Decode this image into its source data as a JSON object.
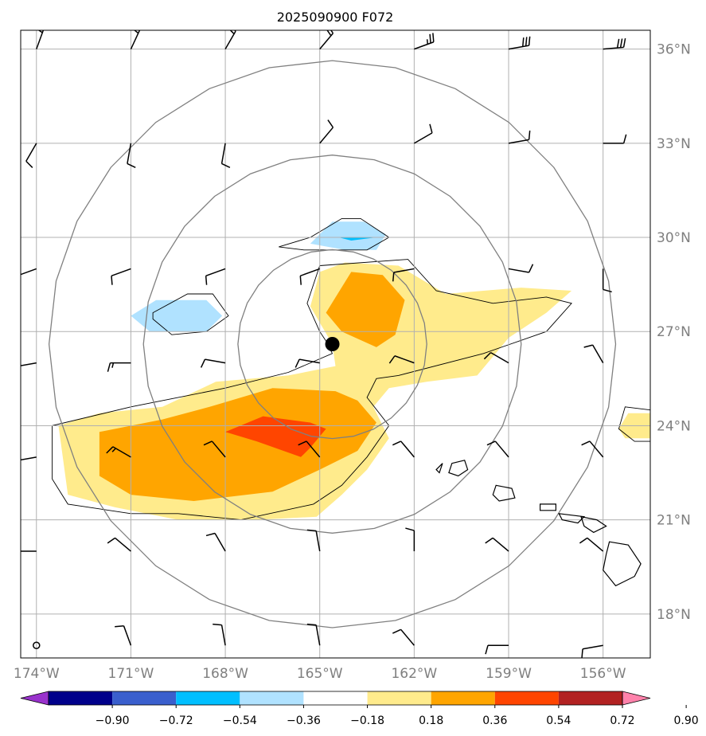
{
  "chart_data": {
    "type": "map-contour",
    "title": "2025090900 F072",
    "lon_labels": [
      "174°W",
      "171°W",
      "168°W",
      "165°W",
      "162°W",
      "159°W",
      "156°W"
    ],
    "lat_labels": [
      "36°N",
      "33°N",
      "30°N",
      "27°N",
      "24°N",
      "21°N",
      "18°N"
    ],
    "lon_range": [
      -174.5,
      -154.5
    ],
    "lat_range": [
      16.6,
      36.6
    ],
    "center": {
      "lon": -164.6,
      "lat": 26.6
    },
    "range_rings_deg": [
      3,
      6,
      9
    ],
    "colorbar": {
      "ticks": [
        "−0.90",
        "−0.72",
        "−0.54",
        "−0.36",
        "−0.18",
        "0.18",
        "0.36",
        "0.54",
        "0.72",
        "0.90"
      ],
      "levels": [
        -0.9,
        -0.72,
        -0.54,
        -0.36,
        -0.18,
        0.18,
        0.36,
        0.54,
        0.72,
        0.9
      ],
      "colors": [
        "#9932cc",
        "#00008b",
        "#3a5fcd",
        "#00bfff",
        "#b0e2ff",
        "#ffffff",
        "#ffeb8c",
        "#ffa500",
        "#ff4500",
        "#b22222",
        "#ff82ab"
      ]
    },
    "contours": [
      {
        "level": "0.18-0.36",
        "color": "#ffeb8c",
        "points": [
          [
            -164.2,
            29.2
          ],
          [
            -162.5,
            29.1
          ],
          [
            -161.0,
            28.2
          ],
          [
            -158.6,
            28.4
          ],
          [
            -157.0,
            28.3
          ],
          [
            -157.8,
            27.6
          ],
          [
            -159.0,
            26.8
          ],
          [
            -160.0,
            25.6
          ],
          [
            -161.6,
            25.4
          ],
          [
            -162.8,
            25.2
          ],
          [
            -163.3,
            24.6
          ],
          [
            -162.8,
            23.6
          ],
          [
            -163.5,
            22.6
          ],
          [
            -164.3,
            21.8
          ],
          [
            -165.1,
            21.1
          ],
          [
            -167.0,
            21.0
          ],
          [
            -169.5,
            21.0
          ],
          [
            -171.5,
            21.4
          ],
          [
            -173.0,
            21.8
          ],
          [
            -173.3,
            24.0
          ],
          [
            -172.0,
            24.4
          ],
          [
            -170.0,
            24.6
          ],
          [
            -168.3,
            25.4
          ],
          [
            -166.0,
            25.6
          ],
          [
            -164.5,
            25.9
          ],
          [
            -164.6,
            26.6
          ],
          [
            -165.3,
            27.8
          ],
          [
            -165.0,
            28.9
          ]
        ]
      },
      {
        "level": "0.36-0.54",
        "color": "#ffa500",
        "points": [
          [
            -164.0,
            28.9
          ],
          [
            -163.0,
            28.8
          ],
          [
            -162.3,
            28.0
          ],
          [
            -162.6,
            26.9
          ],
          [
            -163.2,
            26.5
          ],
          [
            -164.3,
            27.0
          ],
          [
            -164.8,
            27.6
          ]
        ]
      },
      {
        "level": "0.36-0.54",
        "color": "#ffa500",
        "points": [
          [
            -166.5,
            25.2
          ],
          [
            -164.5,
            25.1
          ],
          [
            -163.8,
            24.8
          ],
          [
            -163.2,
            24.1
          ],
          [
            -163.8,
            23.2
          ],
          [
            -165.0,
            22.6
          ],
          [
            -166.5,
            21.9
          ],
          [
            -169.0,
            21.6
          ],
          [
            -171.0,
            21.8
          ],
          [
            -172.0,
            22.4
          ],
          [
            -172.0,
            23.8
          ],
          [
            -170.0,
            24.2
          ],
          [
            -168.5,
            24.6
          ]
        ]
      },
      {
        "level": "0.54-0.72",
        "color": "#ff4500",
        "points": [
          [
            -166.8,
            24.3
          ],
          [
            -165.3,
            24.1
          ],
          [
            -164.8,
            23.9
          ],
          [
            -165.3,
            23.3
          ],
          [
            -165.6,
            23.0
          ],
          [
            -167.0,
            23.5
          ],
          [
            -168.0,
            23.8
          ]
        ]
      },
      {
        "level": "-0.36--0.18",
        "color": "#b0e2ff",
        "points": [
          [
            -164.6,
            30.5
          ],
          [
            -163.6,
            30.5
          ],
          [
            -162.9,
            30.1
          ],
          [
            -163.2,
            29.6
          ],
          [
            -164.2,
            29.6
          ],
          [
            -165.3,
            29.8
          ]
        ]
      },
      {
        "level": "-0.36--0.18",
        "color": "#b0e2ff",
        "points": [
          [
            -170.2,
            28.0
          ],
          [
            -168.6,
            28.0
          ],
          [
            -168.1,
            27.5
          ],
          [
            -168.6,
            27.0
          ],
          [
            -170.4,
            27.0
          ],
          [
            -171.0,
            27.5
          ]
        ]
      },
      {
        "level": "-0.54--0.36",
        "color": "#00bfff",
        "points": [
          [
            -164.4,
            30.0
          ],
          [
            -163.2,
            30.0
          ],
          [
            -164.0,
            29.9
          ]
        ]
      },
      {
        "level": "0.18-0.36",
        "color": "#ffeb8c",
        "points": [
          [
            -155.2,
            24.4
          ],
          [
            -154.5,
            24.4
          ],
          [
            -154.5,
            23.6
          ],
          [
            -155.3,
            23.6
          ],
          [
            -155.5,
            23.9
          ]
        ]
      }
    ],
    "outline_contours": [
      {
        "points": [
          [
            -165.0,
            29.1
          ],
          [
            -162.2,
            29.3
          ],
          [
            -161.3,
            28.3
          ],
          [
            -159.5,
            27.9
          ],
          [
            -157.8,
            28.1
          ],
          [
            -157.0,
            27.9
          ],
          [
            -157.8,
            27.0
          ],
          [
            -159.8,
            26.3
          ],
          [
            -162.5,
            25.6
          ],
          [
            -163.2,
            25.5
          ],
          [
            -163.5,
            24.9
          ],
          [
            -162.8,
            24.0
          ],
          [
            -163.5,
            23.0
          ],
          [
            -164.3,
            22.1
          ],
          [
            -165.2,
            21.5
          ],
          [
            -167.5,
            21.0
          ],
          [
            -169.5,
            21.2
          ],
          [
            -171.0,
            21.2
          ],
          [
            -173.0,
            21.5
          ],
          [
            -173.5,
            22.3
          ],
          [
            -173.5,
            24.0
          ],
          [
            -171.0,
            24.6
          ],
          [
            -168.0,
            25.2
          ],
          [
            -166.0,
            25.7
          ],
          [
            -164.6,
            26.3
          ],
          [
            -164.8,
            26.7
          ],
          [
            -165.0,
            27.0
          ],
          [
            -165.4,
            27.9
          ]
        ]
      },
      {
        "points": [
          [
            -165.3,
            30.0
          ],
          [
            -164.3,
            30.6
          ],
          [
            -163.7,
            30.6
          ],
          [
            -162.8,
            30.0
          ],
          [
            -163.5,
            29.6
          ],
          [
            -165.5,
            29.6
          ],
          [
            -166.3,
            29.7
          ]
        ]
      },
      {
        "points": [
          [
            -170.3,
            27.6
          ],
          [
            -169.2,
            28.2
          ],
          [
            -168.4,
            28.2
          ],
          [
            -167.9,
            27.5
          ],
          [
            -168.6,
            27.0
          ],
          [
            -169.7,
            26.9
          ],
          [
            -170.3,
            27.4
          ]
        ]
      },
      {
        "points": [
          [
            -155.3,
            24.6
          ],
          [
            -154.5,
            24.5
          ],
          [
            -154.5,
            23.5
          ],
          [
            -155.0,
            23.5
          ],
          [
            -155.5,
            23.9
          ]
        ]
      }
    ],
    "islands": [
      {
        "name": "Nihoa",
        "points": [
          [
            -160.8,
            22.8
          ],
          [
            -160.4,
            22.9
          ],
          [
            -160.3,
            22.6
          ],
          [
            -160.6,
            22.4
          ],
          [
            -160.9,
            22.5
          ]
        ]
      },
      {
        "name": "Niihau",
        "points": [
          [
            -161.3,
            22.6
          ],
          [
            -161.1,
            22.8
          ],
          [
            -161.2,
            22.5
          ]
        ]
      },
      {
        "name": "Kauai",
        "points": [
          [
            -159.4,
            22.1
          ],
          [
            -158.9,
            22.0
          ],
          [
            -158.8,
            21.7
          ],
          [
            -159.3,
            21.6
          ],
          [
            -159.5,
            21.8
          ]
        ]
      },
      {
        "name": "Oahu",
        "points": [
          [
            -158.0,
            21.5
          ],
          [
            -157.5,
            21.5
          ],
          [
            -157.5,
            21.3
          ],
          [
            -158.0,
            21.3
          ]
        ]
      },
      {
        "name": "Molokai",
        "points": [
          [
            -157.4,
            21.2
          ],
          [
            -156.6,
            21.1
          ],
          [
            -156.8,
            20.9
          ],
          [
            -157.3,
            21.0
          ]
        ]
      },
      {
        "name": "Maui",
        "points": [
          [
            -156.7,
            21.1
          ],
          [
            -156.2,
            21.0
          ],
          [
            -155.9,
            20.8
          ],
          [
            -156.3,
            20.6
          ],
          [
            -156.6,
            20.8
          ]
        ]
      },
      {
        "name": "Big Island",
        "points": [
          [
            -155.8,
            20.3
          ],
          [
            -155.2,
            20.2
          ],
          [
            -154.8,
            19.6
          ],
          [
            -155.0,
            19.2
          ],
          [
            -155.6,
            18.9
          ],
          [
            -156.0,
            19.4
          ],
          [
            -155.9,
            19.9
          ]
        ]
      }
    ],
    "wind_barbs": [
      {
        "lon": -174,
        "lat": 36,
        "dir": 20,
        "spd": 15
      },
      {
        "lon": -171,
        "lat": 36,
        "dir": 25,
        "spd": 15
      },
      {
        "lon": -168,
        "lat": 36,
        "dir": 30,
        "spd": 20
      },
      {
        "lon": -165,
        "lat": 36,
        "dir": 40,
        "spd": 20
      },
      {
        "lon": -162,
        "lat": 36,
        "dir": 70,
        "spd": 25
      },
      {
        "lon": -159,
        "lat": 36,
        "dir": 80,
        "spd": 30
      },
      {
        "lon": -156,
        "lat": 36,
        "dir": 85,
        "spd": 30
      },
      {
        "lon": -174,
        "lat": 33,
        "dir": 210,
        "spd": 10
      },
      {
        "lon": -171,
        "lat": 33,
        "dir": 190,
        "spd": 10
      },
      {
        "lon": -168,
        "lat": 33,
        "dir": 190,
        "spd": 10
      },
      {
        "lon": -165,
        "lat": 33,
        "dir": 40,
        "spd": 10
      },
      {
        "lon": -162,
        "lat": 33,
        "dir": 60,
        "spd": 10
      },
      {
        "lon": -159,
        "lat": 33,
        "dir": 80,
        "spd": 10
      },
      {
        "lon": -156,
        "lat": 33,
        "dir": 90,
        "spd": 10
      },
      {
        "lon": -174,
        "lat": 29,
        "dir": 250,
        "spd": 15
      },
      {
        "lon": -171,
        "lat": 29,
        "dir": 250,
        "spd": 10
      },
      {
        "lon": -168,
        "lat": 29,
        "dir": 250,
        "spd": 10
      },
      {
        "lon": -165,
        "lat": 29,
        "dir": 250,
        "spd": 10
      },
      {
        "lon": -162,
        "lat": 29,
        "dir": 260,
        "spd": 10
      },
      {
        "lon": -159,
        "lat": 29,
        "dir": 100,
        "spd": 10
      },
      {
        "lon": -156,
        "lat": 29,
        "dir": 180,
        "spd": 10
      },
      {
        "lon": -174,
        "lat": 26,
        "dir": 260,
        "spd": 15
      },
      {
        "lon": -171,
        "lat": 26,
        "dir": 270,
        "spd": 15
      },
      {
        "lon": -168,
        "lat": 26,
        "dir": 280,
        "spd": 10
      },
      {
        "lon": -165,
        "lat": 26,
        "dir": 280,
        "spd": 10
      },
      {
        "lon": -162,
        "lat": 26,
        "dir": 290,
        "spd": 10
      },
      {
        "lon": -159,
        "lat": 26,
        "dir": 300,
        "spd": 10
      },
      {
        "lon": -156,
        "lat": 26,
        "dir": 330,
        "spd": 10
      },
      {
        "lon": -174,
        "lat": 23,
        "dir": 260,
        "spd": 10
      },
      {
        "lon": -171,
        "lat": 23,
        "dir": 300,
        "spd": 15
      },
      {
        "lon": -168,
        "lat": 23,
        "dir": 320,
        "spd": 10
      },
      {
        "lon": -165,
        "lat": 23,
        "dir": 320,
        "spd": 10
      },
      {
        "lon": -162,
        "lat": 23,
        "dir": 320,
        "spd": 10
      },
      {
        "lon": -159,
        "lat": 23,
        "dir": 320,
        "spd": 10
      },
      {
        "lon": -156,
        "lat": 23,
        "dir": 320,
        "spd": 10
      },
      {
        "lon": -174,
        "lat": 20,
        "dir": 270,
        "spd": 10
      },
      {
        "lon": -171,
        "lat": 20,
        "dir": 310,
        "spd": 10
      },
      {
        "lon": -168,
        "lat": 20,
        "dir": 330,
        "spd": 10
      },
      {
        "lon": -165,
        "lat": 20,
        "dir": 350,
        "spd": 10
      },
      {
        "lon": -162,
        "lat": 20,
        "dir": 0,
        "spd": 10
      },
      {
        "lon": -159,
        "lat": 20,
        "dir": 310,
        "spd": 10
      },
      {
        "lon": -156,
        "lat": 20,
        "dir": 310,
        "spd": 10
      },
      {
        "lon": -171,
        "lat": 17,
        "dir": 340,
        "spd": 10
      },
      {
        "lon": -168,
        "lat": 17,
        "dir": 350,
        "spd": 10
      },
      {
        "lon": -165,
        "lat": 17,
        "dir": 350,
        "spd": 10
      },
      {
        "lon": -162,
        "lat": 17,
        "dir": 320,
        "spd": 10
      },
      {
        "lon": -159,
        "lat": 17,
        "dir": 270,
        "spd": 10
      },
      {
        "lon": -156,
        "lat": 17,
        "dir": 260,
        "spd": 10
      }
    ],
    "calm_markers": [
      {
        "lon": -174,
        "lat": 17
      }
    ]
  }
}
